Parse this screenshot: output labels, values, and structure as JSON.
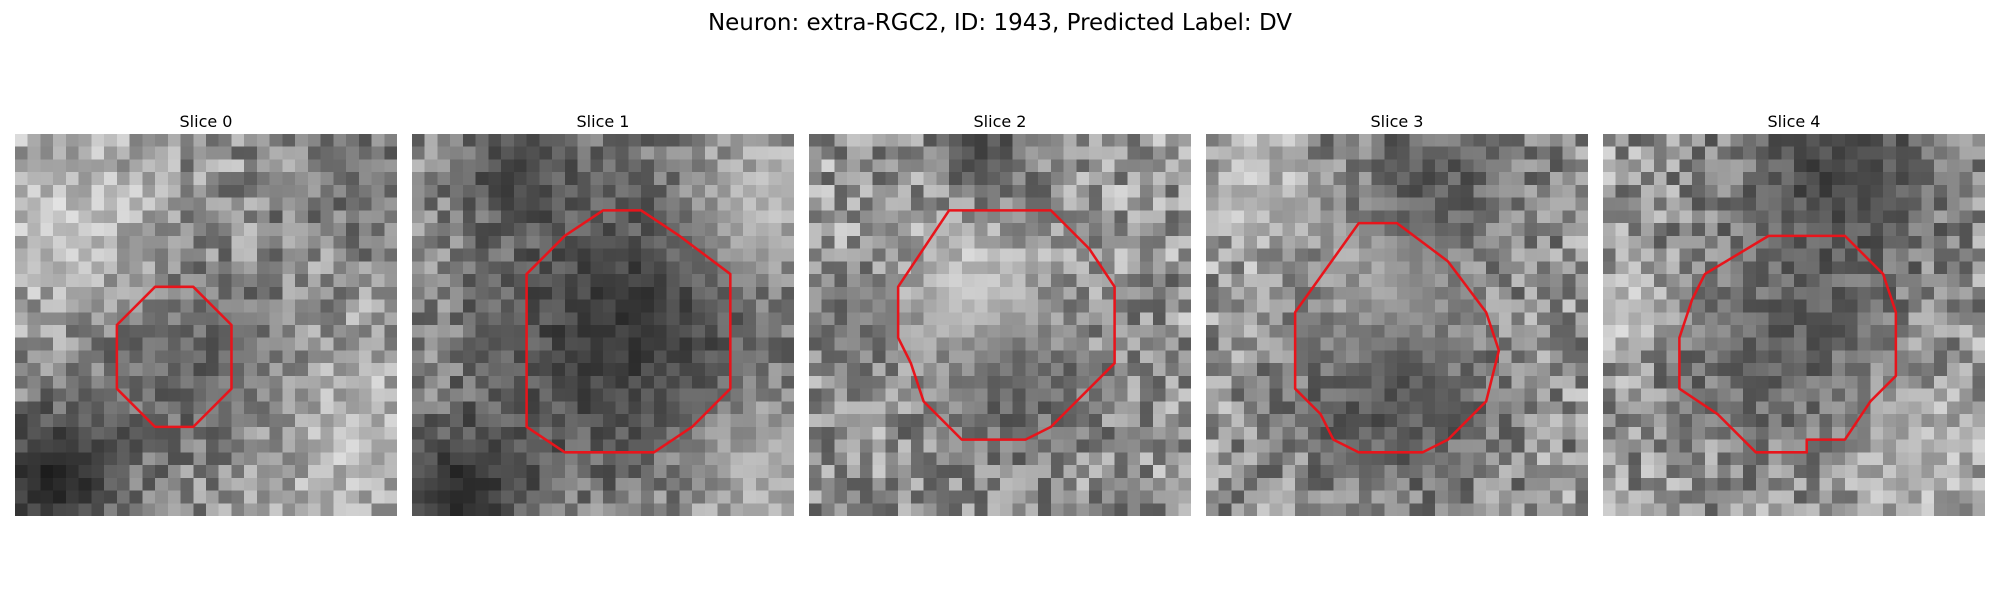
{
  "figure": {
    "title": "Neuron: extra-RGC2, ID: 1943, Predicted Label: DV",
    "roi_color": "#e8141b",
    "colormap": "gray"
  },
  "slices": [
    {
      "title": "Slice 0",
      "roi": [
        [
          11,
          12
        ],
        [
          14,
          12
        ],
        [
          17,
          15
        ],
        [
          17,
          20
        ],
        [
          14,
          23
        ],
        [
          11,
          23
        ],
        [
          8,
          20
        ],
        [
          8,
          15
        ]
      ],
      "blobs": [
        {
          "x": 14,
          "y": 18,
          "r": 6,
          "shade": 55,
          "a": 0.55
        },
        {
          "x": 3,
          "y": 27,
          "r": 4,
          "shade": 15,
          "a": 0.85
        },
        {
          "x": 27,
          "y": 3,
          "r": 4,
          "shade": 70,
          "a": 0.5
        },
        {
          "x": 4,
          "y": 7,
          "r": 5,
          "shade": 245,
          "a": 0.5
        },
        {
          "x": 27,
          "y": 24,
          "r": 5,
          "shade": 240,
          "a": 0.45
        }
      ]
    },
    {
      "title": "Slice 1",
      "roi": [
        [
          15,
          6
        ],
        [
          18,
          6
        ],
        [
          21,
          8
        ],
        [
          25,
          11
        ],
        [
          25,
          20
        ],
        [
          22,
          23
        ],
        [
          19,
          25
        ],
        [
          12,
          25
        ],
        [
          9,
          23
        ],
        [
          9,
          11
        ],
        [
          12,
          8
        ]
      ],
      "blobs": [
        {
          "x": 17,
          "y": 15,
          "r": 9,
          "shade": 25,
          "a": 0.75
        },
        {
          "x": 4,
          "y": 28,
          "r": 4,
          "shade": 20,
          "a": 0.8
        },
        {
          "x": 8,
          "y": 3,
          "r": 3,
          "shade": 40,
          "a": 0.7
        },
        {
          "x": 27,
          "y": 6,
          "r": 4,
          "shade": 240,
          "a": 0.5
        },
        {
          "x": 27,
          "y": 26,
          "r": 4,
          "shade": 235,
          "a": 0.45
        }
      ]
    },
    {
      "title": "Slice 2",
      "roi": [
        [
          11,
          6
        ],
        [
          19,
          6
        ],
        [
          22,
          9
        ],
        [
          24,
          12
        ],
        [
          24,
          18
        ],
        [
          21,
          21
        ],
        [
          19,
          23
        ],
        [
          17,
          24
        ],
        [
          12,
          24
        ],
        [
          9,
          21
        ],
        [
          8,
          18
        ],
        [
          7,
          16
        ],
        [
          7,
          12
        ],
        [
          9,
          9
        ]
      ],
      "blobs": [
        {
          "x": 13,
          "y": 13,
          "r": 4,
          "shade": 245,
          "a": 0.7
        },
        {
          "x": 16,
          "y": 20,
          "r": 5,
          "shade": 60,
          "a": 0.55
        },
        {
          "x": 14,
          "y": 1,
          "r": 3,
          "shade": 30,
          "a": 0.6
        },
        {
          "x": 3,
          "y": 15,
          "r": 3,
          "shade": 70,
          "a": 0.5
        }
      ]
    },
    {
      "title": "Slice 3",
      "roi": [
        [
          12,
          7
        ],
        [
          15,
          7
        ],
        [
          19,
          10
        ],
        [
          22,
          14
        ],
        [
          23,
          17
        ],
        [
          22,
          21
        ],
        [
          21,
          22
        ],
        [
          19,
          24
        ],
        [
          17,
          25
        ],
        [
          12,
          25
        ],
        [
          10,
          24
        ],
        [
          9,
          22
        ],
        [
          7,
          20
        ],
        [
          7,
          14
        ]
      ],
      "blobs": [
        {
          "x": 15,
          "y": 12,
          "r": 4,
          "shade": 235,
          "a": 0.6
        },
        {
          "x": 15,
          "y": 21,
          "r": 6,
          "shade": 45,
          "a": 0.6
        },
        {
          "x": 18,
          "y": 4,
          "r": 5,
          "shade": 40,
          "a": 0.55
        },
        {
          "x": 4,
          "y": 5,
          "r": 3,
          "shade": 235,
          "a": 0.5
        }
      ]
    },
    {
      "title": "Slice 4",
      "roi": [
        [
          13,
          8
        ],
        [
          19,
          8
        ],
        [
          22,
          11
        ],
        [
          23,
          14
        ],
        [
          23,
          19
        ],
        [
          21,
          21
        ],
        [
          19,
          24
        ],
        [
          16,
          24
        ],
        [
          16,
          25
        ],
        [
          12,
          25
        ],
        [
          9,
          22
        ],
        [
          6,
          20
        ],
        [
          6,
          16
        ],
        [
          7,
          13
        ],
        [
          8,
          11
        ]
      ],
      "blobs": [
        {
          "x": 19,
          "y": 3,
          "r": 6,
          "shade": 35,
          "a": 0.7
        },
        {
          "x": 14,
          "y": 17,
          "r": 6,
          "shade": 55,
          "a": 0.55
        },
        {
          "x": 2,
          "y": 14,
          "r": 2,
          "shade": 245,
          "a": 0.55
        },
        {
          "x": 25,
          "y": 25,
          "r": 4,
          "shade": 225,
          "a": 0.45
        }
      ]
    }
  ]
}
